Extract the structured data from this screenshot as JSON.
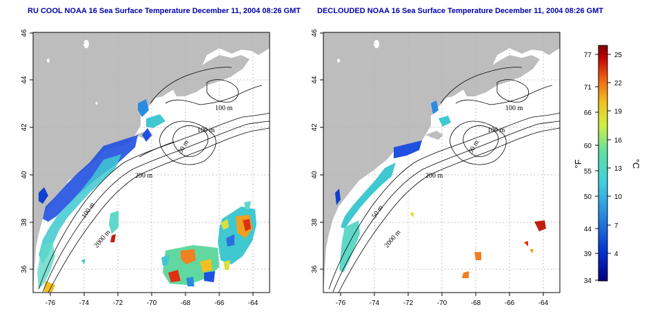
{
  "panels": [
    {
      "title": "RU COOL NOAA 16 Sea Surface Temperature December 11, 2004 08:26 GMT",
      "contour_labels": [
        "100 m",
        "100 m",
        "50 m",
        "200 m",
        "100 m",
        "2000 m"
      ]
    },
    {
      "title": "DECLOUDED NOAA 16 Sea Surface Temperature December 11, 2004 08:26 GMT",
      "contour_labels": [
        "100 m",
        "100 m",
        "50 m",
        "200 m",
        "50 m",
        "2000 m"
      ]
    }
  ],
  "map_axes": {
    "lon_ticks": [
      "-76",
      "-74",
      "-72",
      "-70",
      "-68",
      "-66",
      "-64"
    ],
    "lat_ticks": [
      "36",
      "38",
      "40",
      "42",
      "44",
      "46"
    ]
  },
  "colorbar": {
    "fahrenheit_label": "°F",
    "celsius_label": "°C",
    "fahrenheit_ticks": [
      "77",
      "71",
      "66",
      "60",
      "55",
      "50",
      "44",
      "39",
      "34"
    ],
    "celsius_ticks": [
      "25",
      "22",
      "19",
      "16",
      "13",
      "10",
      "7",
      "4"
    ]
  },
  "colors": {
    "land": "#bdbdbd",
    "ocean": "#ffffff",
    "title": "#0000aa",
    "cold": "#0000a0",
    "cool": "#2a6fe0",
    "mid": "#40c8c0",
    "warm": "#f0e040",
    "hot": "#e03010",
    "hottest": "#900000"
  }
}
